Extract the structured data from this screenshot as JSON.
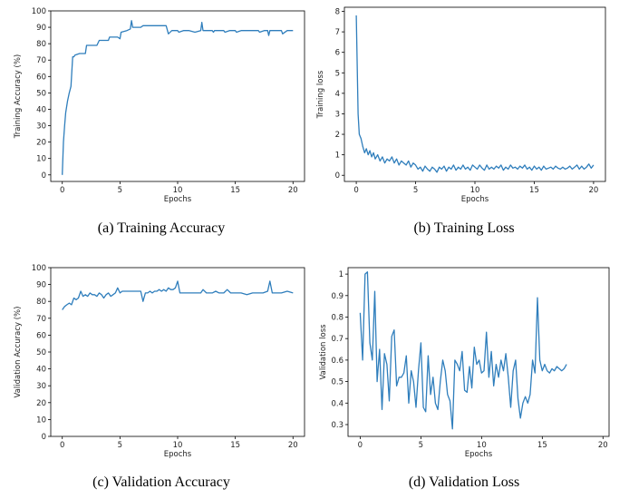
{
  "chart_data": [
    {
      "type": "line",
      "caption": "(a) Training Accuracy",
      "xlabel": "Epochs",
      "ylabel": "Training Accuracy (%)",
      "xlim": [
        -1,
        21
      ],
      "ylim": [
        -4,
        100
      ],
      "xticks": [
        0,
        5,
        10,
        15,
        20
      ],
      "yticks": [
        0,
        10,
        20,
        30,
        40,
        50,
        60,
        70,
        80,
        90,
        100
      ],
      "color": "#2f7ebc",
      "x": [
        0,
        0.1,
        0.2,
        0.3,
        0.45,
        0.6,
        0.75,
        0.9,
        1.0,
        1.1,
        1.5,
        2.0,
        2.1,
        2.8,
        3.0,
        3.2,
        3.8,
        4.0,
        4.1,
        4.8,
        5.0,
        5.1,
        5.6,
        5.9,
        6.0,
        6.1,
        6.8,
        7.0,
        7.5,
        8.0,
        8.5,
        9.0,
        9.2,
        9.5,
        10.0,
        10.1,
        10.5,
        11.0,
        11.5,
        12.0,
        12.1,
        12.2,
        12.5,
        13.0,
        13.1,
        13.2,
        13.5,
        14.0,
        14.1,
        14.5,
        15.0,
        15.1,
        15.5,
        16.0,
        16.5,
        17.0,
        17.1,
        17.5,
        17.8,
        17.9,
        18.0,
        18.5,
        19.0,
        19.1,
        19.5,
        20.0
      ],
      "y": [
        0,
        20,
        30,
        38,
        45,
        50,
        54,
        72,
        72,
        73,
        74,
        74,
        79,
        79,
        79,
        82,
        82,
        82,
        84,
        84,
        83,
        87,
        88,
        89,
        94,
        90,
        90,
        91,
        91,
        91,
        91,
        91,
        86,
        88,
        88,
        87,
        88,
        88,
        87,
        88,
        93,
        88,
        88,
        88,
        87,
        88,
        88,
        88,
        87,
        88,
        88,
        87,
        88,
        88,
        88,
        88,
        87,
        88,
        88,
        85,
        88,
        88,
        88,
        86,
        88,
        88
      ]
    },
    {
      "type": "line",
      "caption": "(b) Training Loss",
      "xlabel": "Epochs",
      "ylabel": "Training loss",
      "xlim": [
        -1,
        21
      ],
      "ylim": [
        -0.3,
        8.2
      ],
      "xticks": [
        0,
        5,
        10,
        15,
        20
      ],
      "yticks": [
        0,
        1,
        2,
        3,
        4,
        5,
        6,
        7,
        8
      ],
      "color": "#2f7ebc",
      "x": [
        0,
        0.15,
        0.25,
        0.4,
        0.55,
        0.7,
        0.85,
        1.0,
        1.15,
        1.3,
        1.45,
        1.6,
        1.8,
        2.0,
        2.2,
        2.4,
        2.6,
        2.8,
        3.0,
        3.2,
        3.4,
        3.6,
        3.8,
        4.0,
        4.2,
        4.4,
        4.6,
        4.8,
        5.0,
        5.2,
        5.4,
        5.6,
        5.8,
        6.0,
        6.2,
        6.4,
        6.6,
        6.8,
        7.0,
        7.2,
        7.4,
        7.6,
        7.8,
        8.0,
        8.2,
        8.4,
        8.6,
        8.8,
        9.0,
        9.2,
        9.4,
        9.6,
        9.8,
        10.0,
        10.2,
        10.4,
        10.6,
        10.8,
        11.0,
        11.2,
        11.4,
        11.6,
        11.8,
        12.0,
        12.2,
        12.4,
        12.6,
        12.8,
        13.0,
        13.2,
        13.4,
        13.6,
        13.8,
        14.0,
        14.2,
        14.4,
        14.6,
        14.8,
        15.0,
        15.2,
        15.4,
        15.6,
        15.8,
        16.0,
        16.2,
        16.4,
        16.6,
        16.8,
        17.0,
        17.2,
        17.4,
        17.6,
        17.8,
        18.0,
        18.2,
        18.4,
        18.6,
        18.8,
        19.0,
        19.2,
        19.4,
        19.6,
        19.8,
        20.0
      ],
      "y": [
        7.8,
        3.0,
        2.0,
        1.8,
        1.4,
        1.1,
        1.3,
        1.0,
        1.2,
        0.9,
        1.1,
        0.8,
        1.0,
        0.7,
        0.9,
        0.6,
        0.8,
        0.7,
        0.9,
        0.6,
        0.8,
        0.5,
        0.7,
        0.6,
        0.5,
        0.7,
        0.4,
        0.6,
        0.5,
        0.3,
        0.4,
        0.2,
        0.45,
        0.3,
        0.2,
        0.4,
        0.3,
        0.15,
        0.4,
        0.3,
        0.45,
        0.2,
        0.4,
        0.3,
        0.5,
        0.25,
        0.4,
        0.3,
        0.5,
        0.3,
        0.4,
        0.25,
        0.5,
        0.4,
        0.3,
        0.5,
        0.35,
        0.25,
        0.5,
        0.3,
        0.4,
        0.3,
        0.45,
        0.35,
        0.5,
        0.25,
        0.4,
        0.3,
        0.5,
        0.35,
        0.4,
        0.3,
        0.45,
        0.35,
        0.5,
        0.3,
        0.4,
        0.25,
        0.45,
        0.3,
        0.4,
        0.25,
        0.45,
        0.3,
        0.35,
        0.4,
        0.3,
        0.45,
        0.35,
        0.3,
        0.4,
        0.3,
        0.35,
        0.45,
        0.3,
        0.4,
        0.5,
        0.3,
        0.45,
        0.3,
        0.4,
        0.55,
        0.35,
        0.5
      ]
    },
    {
      "type": "line",
      "caption": "(c) Validation Accuracy",
      "xlabel": "Epochs",
      "ylabel": "Validation Accuracy (%)",
      "xlim": [
        -1,
        21
      ],
      "ylim": [
        0,
        100
      ],
      "xticks": [
        0,
        5,
        10,
        15,
        20
      ],
      "yticks": [
        0,
        10,
        20,
        30,
        40,
        50,
        60,
        70,
        80,
        90,
        100
      ],
      "color": "#2f7ebc",
      "x": [
        0,
        0.2,
        0.4,
        0.6,
        0.8,
        1.0,
        1.2,
        1.4,
        1.6,
        1.8,
        2.0,
        2.2,
        2.4,
        2.6,
        2.8,
        3.0,
        3.2,
        3.4,
        3.6,
        3.8,
        4.0,
        4.2,
        4.4,
        4.6,
        4.8,
        5.0,
        5.2,
        5.4,
        5.6,
        5.8,
        6.0,
        6.2,
        6.4,
        6.6,
        6.8,
        7.0,
        7.2,
        7.4,
        7.6,
        7.8,
        8.0,
        8.2,
        8.4,
        8.6,
        8.8,
        9.0,
        9.2,
        9.4,
        9.6,
        9.8,
        10.0,
        10.2,
        10.5,
        11.0,
        11.5,
        12.0,
        12.2,
        12.5,
        13.0,
        13.3,
        13.6,
        14.0,
        14.3,
        14.6,
        15.0,
        15.5,
        16.0,
        16.5,
        17.0,
        17.4,
        17.8,
        18.0,
        18.2,
        18.5,
        19.0,
        19.5,
        20.0
      ],
      "y": [
        75,
        77,
        78,
        79,
        78,
        82,
        81,
        82,
        86,
        83,
        84,
        83,
        85,
        84,
        84,
        83,
        85,
        84,
        82,
        84,
        85,
        83,
        84,
        85,
        88,
        85,
        86,
        86,
        86,
        86,
        86,
        86,
        86,
        86,
        86,
        80,
        85,
        85,
        86,
        85,
        86,
        86,
        87,
        86,
        87,
        86,
        88,
        87,
        87,
        88,
        92,
        85,
        85,
        85,
        85,
        85,
        87,
        85,
        85,
        86,
        85,
        85,
        87,
        85,
        85,
        85,
        84,
        85,
        85,
        85,
        86,
        92,
        85,
        85,
        85,
        86,
        85
      ]
    },
    {
      "type": "line",
      "caption": "(d) Validation Loss",
      "xlabel": "Epochs",
      "ylabel": "Validation loss",
      "xlim": [
        -1,
        20.5
      ],
      "ylim": [
        0.245,
        1.03
      ],
      "xticks": [
        0,
        5,
        10,
        15,
        20
      ],
      "yticks": [
        0.3,
        0.4,
        0.5,
        0.6,
        0.7,
        0.8,
        0.9,
        1.0
      ],
      "color": "#2f7ebc",
      "x": [
        0,
        0.2,
        0.4,
        0.6,
        0.8,
        1.0,
        1.2,
        1.4,
        1.6,
        1.8,
        2.0,
        2.2,
        2.4,
        2.6,
        2.8,
        3.0,
        3.2,
        3.4,
        3.6,
        3.8,
        4.0,
        4.2,
        4.4,
        4.6,
        4.8,
        5.0,
        5.2,
        5.4,
        5.6,
        5.8,
        6.0,
        6.2,
        6.4,
        6.6,
        6.8,
        7.0,
        7.2,
        7.4,
        7.6,
        7.8,
        8.0,
        8.2,
        8.4,
        8.6,
        8.8,
        9.0,
        9.2,
        9.4,
        9.6,
        9.8,
        10.0,
        10.2,
        10.4,
        10.6,
        10.8,
        11.0,
        11.2,
        11.4,
        11.6,
        11.8,
        12.0,
        12.2,
        12.4,
        12.6,
        12.8,
        13.0,
        13.2,
        13.4,
        13.6,
        13.8,
        14.0,
        14.2,
        14.4,
        14.6,
        14.8,
        15.0,
        15.2,
        15.4,
        15.6,
        15.8,
        16.0,
        16.2,
        16.4,
        16.6,
        16.8,
        17.0
      ],
      "y": [
        0.82,
        0.6,
        1.0,
        1.01,
        0.68,
        0.6,
        0.92,
        0.5,
        0.65,
        0.37,
        0.63,
        0.58,
        0.41,
        0.71,
        0.74,
        0.48,
        0.52,
        0.52,
        0.54,
        0.62,
        0.4,
        0.55,
        0.5,
        0.38,
        0.55,
        0.68,
        0.38,
        0.36,
        0.62,
        0.44,
        0.52,
        0.4,
        0.37,
        0.5,
        0.6,
        0.55,
        0.44,
        0.41,
        0.28,
        0.6,
        0.58,
        0.55,
        0.64,
        0.46,
        0.45,
        0.57,
        0.47,
        0.66,
        0.58,
        0.6,
        0.54,
        0.55,
        0.73,
        0.52,
        0.64,
        0.48,
        0.58,
        0.52,
        0.6,
        0.55,
        0.63,
        0.52,
        0.38,
        0.55,
        0.6,
        0.42,
        0.33,
        0.4,
        0.43,
        0.4,
        0.44,
        0.6,
        0.54,
        0.89,
        0.6,
        0.55,
        0.58,
        0.55,
        0.54,
        0.56,
        0.55,
        0.57,
        0.56,
        0.55,
        0.56,
        0.58
      ]
    }
  ]
}
